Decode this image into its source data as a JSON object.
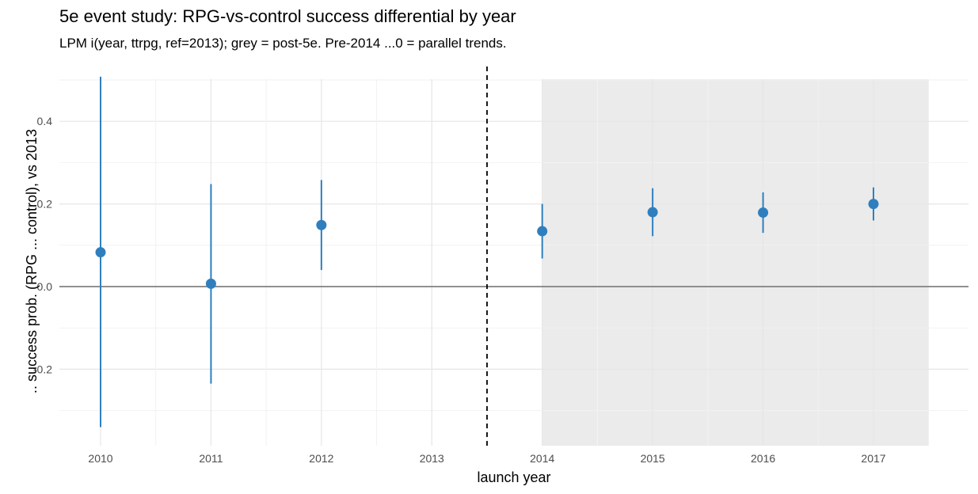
{
  "chart_data": {
    "type": "scatter",
    "title": "5e event study: RPG-vs-control success differential by year",
    "subtitle": "LPM i(year, ttrpg, ref=2013); grey = post-5e. Pre-2014 ...0 = parallel trends.",
    "xlabel": "launch year",
    "ylabel": ".. success prob. (RPG ... control), vs 2013",
    "categories": [
      "2010",
      "2011",
      "2012",
      "2013",
      "2014",
      "2015",
      "2016",
      "2017"
    ],
    "y_ticks": [
      "-0.2",
      "0.0",
      "0.2",
      "0.4"
    ],
    "ylim": [
      -0.34,
      0.51
    ],
    "reference_line": 0,
    "event_line_between": [
      "2013",
      "2014"
    ],
    "shaded_region": [
      "2014",
      "2017"
    ],
    "point_color": "#2f7fbe",
    "shade_color": "#ebebeb",
    "points": [
      {
        "x": "2010",
        "estimate": 0.083,
        "lower": -0.34,
        "upper": 0.508
      },
      {
        "x": "2011",
        "estimate": 0.007,
        "lower": -0.235,
        "upper": 0.248
      },
      {
        "x": "2012",
        "estimate": 0.149,
        "lower": 0.04,
        "upper": 0.258
      },
      {
        "x": "2014",
        "estimate": 0.134,
        "lower": 0.068,
        "upper": 0.2
      },
      {
        "x": "2015",
        "estimate": 0.18,
        "lower": 0.122,
        "upper": 0.238
      },
      {
        "x": "2016",
        "estimate": 0.179,
        "lower": 0.13,
        "upper": 0.228
      },
      {
        "x": "2017",
        "estimate": 0.2,
        "lower": 0.16,
        "upper": 0.24
      }
    ]
  }
}
